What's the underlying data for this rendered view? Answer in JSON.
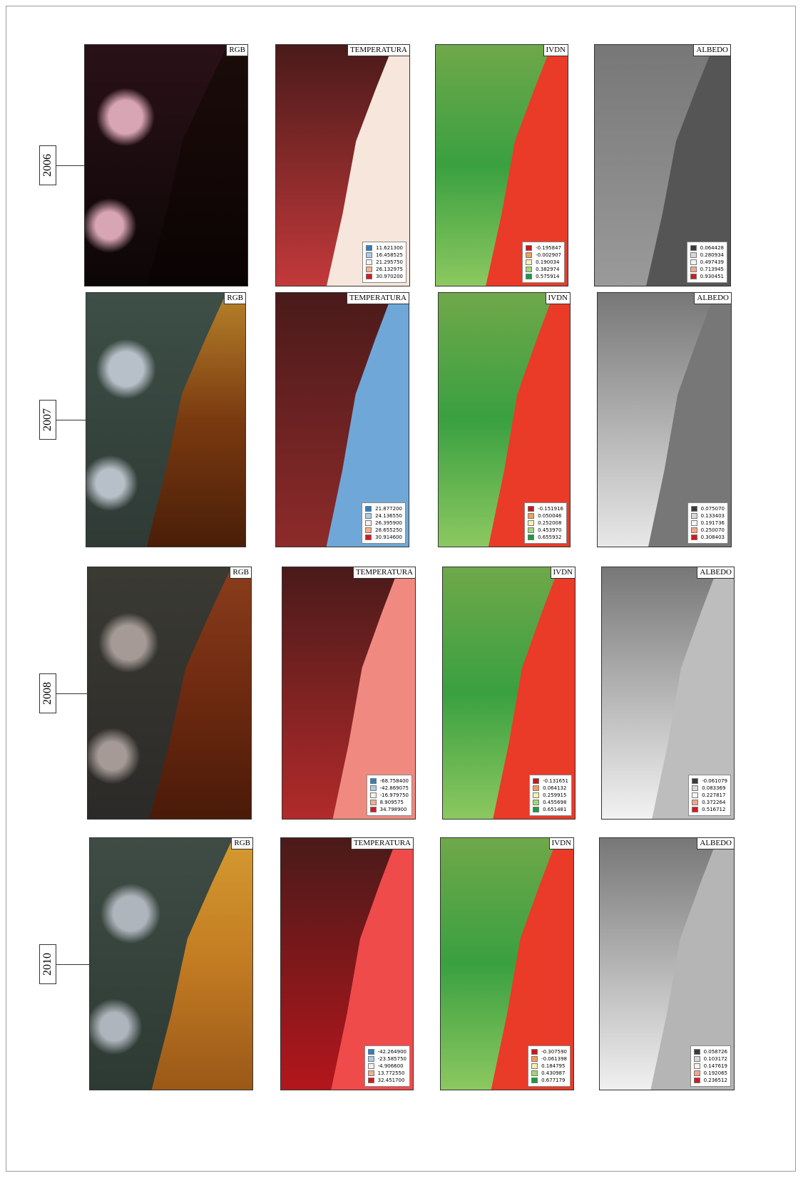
{
  "rows": [
    {
      "year": "2006",
      "panels": [
        {
          "title": "RGB"
        },
        {
          "title": "TEMPERATURA",
          "legend": [
            "11.621300",
            "16.458525",
            "21.295750",
            "26.132975",
            "30.970200"
          ]
        },
        {
          "title": "IVDN",
          "legend": [
            "-0.195847",
            "-0.002907",
            "0.190034",
            "0.382974",
            "0.575914"
          ]
        },
        {
          "title": "ALBEDO",
          "legend": [
            "0.064428",
            "0.280934",
            "0.497439",
            "0.713945",
            "0.930451"
          ]
        }
      ]
    },
    {
      "year": "2007",
      "panels": [
        {
          "title": "RGB"
        },
        {
          "title": "TEMPERATURA",
          "legend": [
            "21.877200",
            "24.136550",
            "26.395900",
            "28.655250",
            "30.914600"
          ]
        },
        {
          "title": "IVDN",
          "legend": [
            "-0.151916",
            "0.050046",
            "0.252008",
            "0.453970",
            "0.655932"
          ]
        },
        {
          "title": "ALBEDO",
          "legend": [
            "0.075070",
            "0.133403",
            "0.191736",
            "0.250070",
            "0.308403"
          ]
        }
      ]
    },
    {
      "year": "2008",
      "panels": [
        {
          "title": "RGB"
        },
        {
          "title": "TEMPERATURA",
          "legend": [
            "-68.758400",
            "-42.869075",
            "-16.979750",
            "8.909575",
            "34.798900"
          ]
        },
        {
          "title": "IVDN",
          "legend": [
            "-0.131651",
            "0.064132",
            "0.259915",
            "0.455698",
            "0.651481"
          ]
        },
        {
          "title": "ALBEDO",
          "legend": [
            "-0.061079",
            "0.083369",
            "0.227817",
            "0.372264",
            "0.516712"
          ]
        }
      ]
    },
    {
      "year": "2010",
      "panels": [
        {
          "title": "RGB"
        },
        {
          "title": "TEMPERATURA",
          "legend": [
            "-42.264900",
            "-23.585750",
            "-4.906600",
            "13.772550",
            "32.451700"
          ]
        },
        {
          "title": "IVDN",
          "legend": [
            "-0.307590",
            "-0.061398",
            "0.184795",
            "0.430987",
            "0.677179"
          ]
        },
        {
          "title": "ALBEDO",
          "legend": [
            "0.058726",
            "0.103172",
            "0.147619",
            "0.192065",
            "0.236512"
          ]
        }
      ]
    }
  ]
}
